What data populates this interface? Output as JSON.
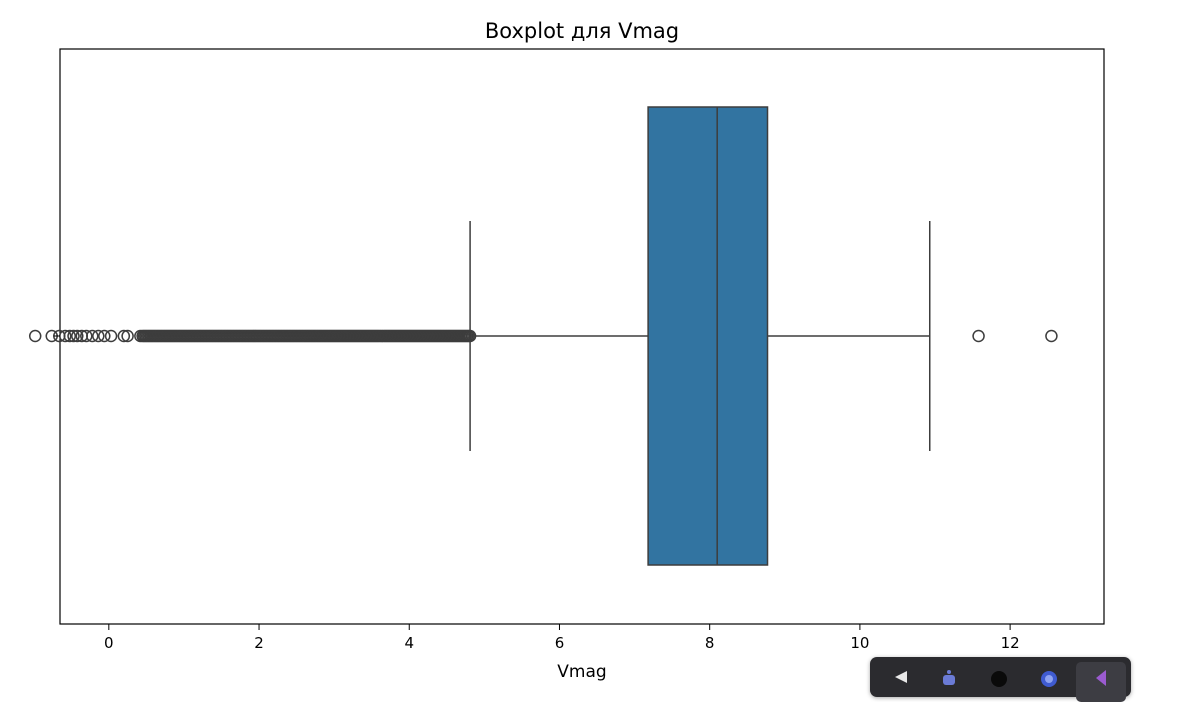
{
  "chart_data": {
    "type": "box",
    "orientation": "horizontal",
    "title": "Boxplot для Vmag",
    "xlabel": "Vmag",
    "ylabel": "",
    "xlim": [
      -0.65,
      13.25
    ],
    "x_ticks": [
      0,
      2,
      4,
      6,
      8,
      10,
      12
    ],
    "x_tick_labels": [
      "0",
      "2",
      "4",
      "6",
      "8",
      "10",
      "12"
    ],
    "y_ticks": [
      ""
    ],
    "grid": false,
    "box_color": "#3274a1",
    "outline_color": "#3d3d3d",
    "box": {
      "q1": 7.18,
      "median": 8.1,
      "q3": 8.77,
      "whisker_low": 4.81,
      "whisker_high": 10.93
    },
    "outliers": {
      "sparse": [
        -0.98,
        -0.76,
        -0.66,
        -0.58,
        -0.52,
        -0.47,
        -0.42,
        -0.36,
        -0.3,
        -0.22,
        -0.14,
        -0.06,
        0.03,
        0.2,
        0.25,
        0.42,
        11.58,
        12.55
      ],
      "dense_range": [
        0.45,
        4.81
      ]
    }
  },
  "toolbar": {
    "icons": [
      "arrow-icon",
      "bot-icon",
      "circle-icon",
      "globe-icon",
      "flag-icon"
    ]
  }
}
